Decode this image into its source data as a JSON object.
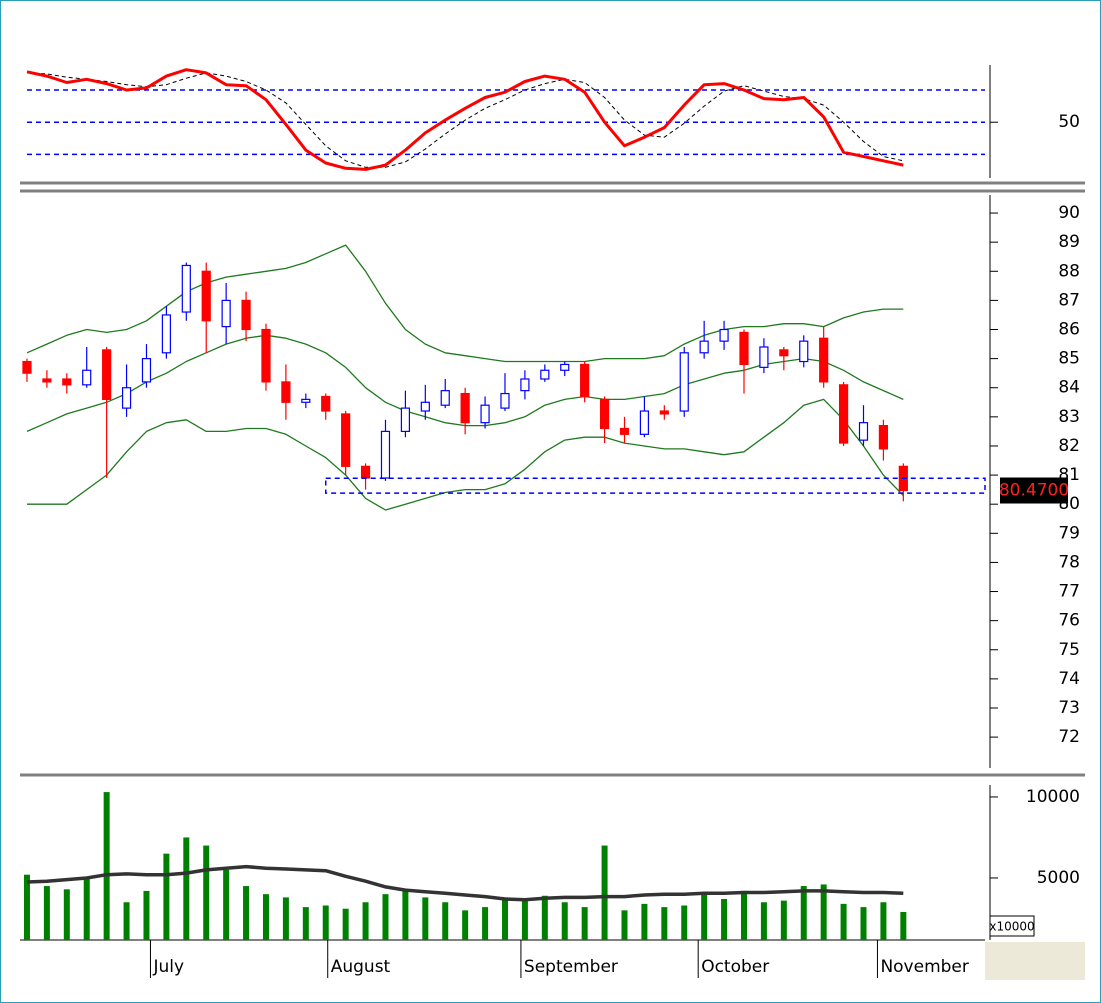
{
  "chart_data": [
    {
      "type": "oscillator",
      "ylim": [
        -2,
        108
      ],
      "yticks": [
        50
      ],
      "levels": [
        20,
        50,
        80
      ],
      "level_color": "#0000ff",
      "series": [
        {
          "name": "%K",
          "color": "#ff0000",
          "values": [
            97,
            93,
            87,
            90,
            86,
            80,
            82,
            93,
            99,
            96,
            85,
            84,
            71,
            48,
            24,
            12,
            7,
            6,
            10,
            24,
            40,
            52,
            63,
            73,
            78,
            88,
            93,
            90,
            78,
            50,
            28,
            36,
            45,
            66,
            85,
            86,
            80,
            72,
            71,
            73,
            55,
            22,
            18,
            14,
            10
          ]
        },
        {
          "name": "%D",
          "color": "#000000",
          "values": [
            96,
            95,
            92,
            90,
            88,
            85,
            83,
            85,
            91,
            96,
            93,
            88,
            80,
            68,
            48,
            28,
            14,
            8,
            8,
            13,
            25,
            39,
            52,
            63,
            71,
            80,
            86,
            90,
            87,
            73,
            52,
            38,
            36,
            49,
            65,
            79,
            84,
            79,
            74,
            72,
            66,
            50,
            32,
            18,
            14
          ]
        }
      ]
    },
    {
      "type": "candlestick",
      "ylim": [
        70.87,
        90.62
      ],
      "yticks": [
        72,
        73,
        74,
        75,
        76,
        77,
        78,
        79,
        80,
        81,
        82,
        83,
        84,
        85,
        86,
        87,
        88,
        89,
        90
      ],
      "up_color": "#0000ff",
      "down_color": "#ff0000",
      "open": [
        84.9,
        84.3,
        84.3,
        84.1,
        85.3,
        83.3,
        84.2,
        85.2,
        86.6,
        88.0,
        86.1,
        87.0,
        86.0,
        84.2,
        83.5,
        83.7,
        83.1,
        81.3,
        80.9,
        82.5,
        83.2,
        83.4,
        83.8,
        82.8,
        83.3,
        83.9,
        84.3,
        84.6,
        84.8,
        83.6,
        82.6,
        82.4,
        83.2,
        83.2,
        85.2,
        85.6,
        85.9,
        84.7,
        85.3,
        84.9,
        85.7,
        84.1,
        82.2,
        82.7,
        81.3
      ],
      "high": [
        85.0,
        84.6,
        84.5,
        85.4,
        85.4,
        84.8,
        85.5,
        86.8,
        88.3,
        88.3,
        87.6,
        87.3,
        86.2,
        84.8,
        83.8,
        83.8,
        83.2,
        81.4,
        82.9,
        83.9,
        84.1,
        84.3,
        84.0,
        83.7,
        84.5,
        84.6,
        84.8,
        84.9,
        84.9,
        83.7,
        83.0,
        83.7,
        83.4,
        85.4,
        86.3,
        86.3,
        86.0,
        85.7,
        85.4,
        85.8,
        86.1,
        84.2,
        83.4,
        82.9,
        81.4
      ],
      "low": [
        84.2,
        84.0,
        83.8,
        84.0,
        80.9,
        83.0,
        84.0,
        85.0,
        86.3,
        85.2,
        85.5,
        85.6,
        83.9,
        82.9,
        83.3,
        82.9,
        81.0,
        80.5,
        80.8,
        82.3,
        82.9,
        83.3,
        82.4,
        82.6,
        83.2,
        83.6,
        84.2,
        84.4,
        83.5,
        82.1,
        82.1,
        82.3,
        82.9,
        83.0,
        85.0,
        85.3,
        83.8,
        84.5,
        84.6,
        84.7,
        84.0,
        82.0,
        82.0,
        81.5,
        80.1
      ],
      "close": [
        84.5,
        84.2,
        84.1,
        84.6,
        83.6,
        84.0,
        85.0,
        86.5,
        88.2,
        86.3,
        87.0,
        86.0,
        84.2,
        83.5,
        83.6,
        83.2,
        81.3,
        80.9,
        82.5,
        83.3,
        83.5,
        83.9,
        82.8,
        83.4,
        83.8,
        84.3,
        84.6,
        84.8,
        83.7,
        82.6,
        82.4,
        83.2,
        83.1,
        85.2,
        85.6,
        86.0,
        84.8,
        85.4,
        85.1,
        85.6,
        84.2,
        82.1,
        82.8,
        81.9,
        80.47
      ],
      "series": [
        {
          "name": "Upper",
          "color": "#1f7a1f",
          "values": [
            85.2,
            85.5,
            85.8,
            86.0,
            85.9,
            86.0,
            86.3,
            86.8,
            87.3,
            87.6,
            87.8,
            87.9,
            88.0,
            88.1,
            88.3,
            88.6,
            88.9,
            88.0,
            86.9,
            86.0,
            85.5,
            85.2,
            85.1,
            85.0,
            84.9,
            84.9,
            84.9,
            84.9,
            84.9,
            85.0,
            85.0,
            85.0,
            85.1,
            85.5,
            85.8,
            86.0,
            86.1,
            86.1,
            86.2,
            86.2,
            86.1,
            86.4,
            86.6,
            86.7,
            86.7
          ]
        },
        {
          "name": "Middle",
          "color": "#1f7a1f",
          "values": [
            82.5,
            82.8,
            83.1,
            83.3,
            83.5,
            83.8,
            84.2,
            84.5,
            84.9,
            85.2,
            85.5,
            85.7,
            85.8,
            85.7,
            85.5,
            85.2,
            84.7,
            84.0,
            83.5,
            83.2,
            83.0,
            82.8,
            82.7,
            82.7,
            82.8,
            83.0,
            83.4,
            83.6,
            83.7,
            83.6,
            83.6,
            83.7,
            83.8,
            84.1,
            84.3,
            84.5,
            84.6,
            84.8,
            84.9,
            85.0,
            84.9,
            84.6,
            84.2,
            83.9,
            83.6
          ]
        },
        {
          "name": "Lower",
          "color": "#1f7a1f",
          "values": [
            80.0,
            80.0,
            80.0,
            80.5,
            81.0,
            81.8,
            82.5,
            82.8,
            82.9,
            82.5,
            82.5,
            82.6,
            82.6,
            82.4,
            82.0,
            81.6,
            81.0,
            80.2,
            79.8,
            80.0,
            80.2,
            80.4,
            80.5,
            80.5,
            80.7,
            81.2,
            81.8,
            82.2,
            82.3,
            82.3,
            82.1,
            82.0,
            81.9,
            81.9,
            81.8,
            81.7,
            81.8,
            82.3,
            82.8,
            83.4,
            83.6,
            82.9,
            82.0,
            81.0,
            80.3
          ]
        }
      ],
      "support_zone": {
        "start": 15,
        "range": [
          80.38,
          80.89
        ],
        "color": "#0000ff"
      },
      "last_price": {
        "value": 80.47,
        "label": "80.4700"
      }
    },
    {
      "type": "volume",
      "ylim": [
        1170,
        11170
      ],
      "yticks": [
        5000,
        10000
      ],
      "unit_label": "x10000",
      "xlim": [
        -0.35,
        48.1
      ],
      "xticks": [
        {
          "value": 6.2,
          "label": "July"
        },
        {
          "value": 15.1,
          "label": "August"
        },
        {
          "value": 24.8,
          "label": "September"
        },
        {
          "value": 33.7,
          "label": "October"
        },
        {
          "value": 42.7,
          "label": "November"
        }
      ],
      "color": "#008000",
      "values": [
        5200,
        4500,
        4300,
        5000,
        10300,
        3500,
        4200,
        6500,
        7500,
        7000,
        5500,
        4500,
        4000,
        3800,
        3200,
        3300,
        3100,
        3500,
        4000,
        4200,
        3800,
        3500,
        3000,
        3200,
        3800,
        3600,
        3900,
        3500,
        3200,
        7000,
        3000,
        3400,
        3200,
        3300,
        4000,
        3700,
        4200,
        3500,
        3600,
        4500,
        4600,
        3400,
        3200,
        3500,
        2900
      ],
      "series": [
        {
          "name": "MA",
          "color": "#333333",
          "values": [
            4750,
            4800,
            4900,
            5000,
            5200,
            5250,
            5200,
            5200,
            5300,
            5500,
            5600,
            5700,
            5600,
            5550,
            5500,
            5450,
            5100,
            4800,
            4450,
            4250,
            4150,
            4050,
            3950,
            3850,
            3700,
            3650,
            3750,
            3800,
            3800,
            3850,
            3850,
            3950,
            4000,
            4000,
            4050,
            4050,
            4100,
            4100,
            4150,
            4200,
            4200,
            4150,
            4100,
            4100,
            4050
          ]
        }
      ]
    }
  ]
}
